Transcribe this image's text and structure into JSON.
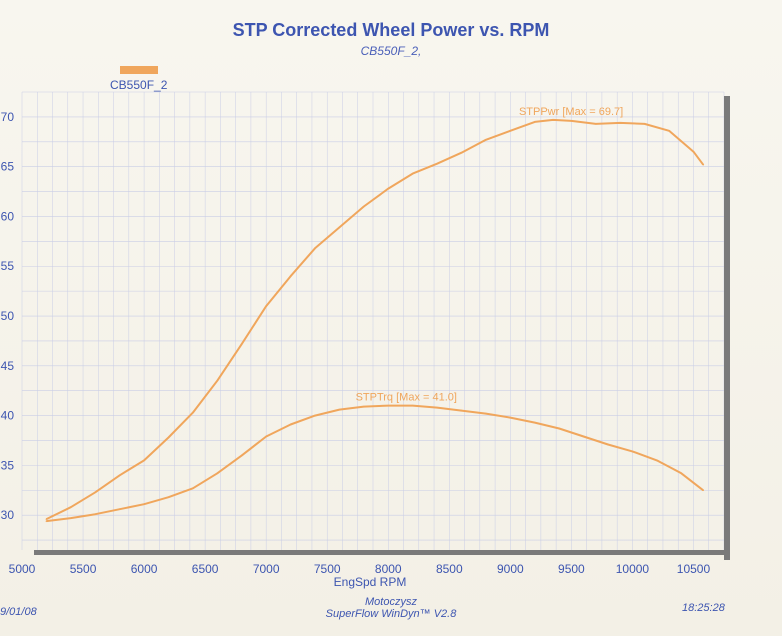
{
  "header": {
    "title": "STP Corrected Wheel Power vs. RPM",
    "subtitle": "CB550F_2,"
  },
  "legend": {
    "label": "CB550F_2",
    "color": "#f0a65c"
  },
  "footer": {
    "date": "9/01/08",
    "company": "Motoczysz",
    "software": "SuperFlow WinDyn™ V2.8",
    "time": "18:25:28"
  },
  "colors": {
    "series": "#f0a65c",
    "grid": "#c9cde6",
    "text": "#3d55b0",
    "frame": "#7a7a7a"
  },
  "chart_data": {
    "type": "line",
    "title": "STP Corrected Wheel Power vs. RPM",
    "xlabel": "EngSpd  RPM",
    "ylabel": "",
    "xlim": [
      5000,
      10750
    ],
    "ylim": [
      26.5,
      72.5
    ],
    "xticks": [
      5000,
      5500,
      6000,
      6500,
      7000,
      7500,
      8000,
      8500,
      9000,
      9500,
      10000,
      10500
    ],
    "yticks": [
      30,
      35,
      40,
      45,
      50,
      55,
      60,
      65,
      70
    ],
    "grid": true,
    "legend_position": "top-left",
    "series": [
      {
        "name": "CB550F_2",
        "label": "STPPwr [Max = 69.7]",
        "x": [
          5200,
          5400,
          5600,
          5800,
          6000,
          6200,
          6400,
          6600,
          6800,
          7000,
          7200,
          7400,
          7600,
          7800,
          8000,
          8200,
          8400,
          8600,
          8800,
          9000,
          9200,
          9350,
          9500,
          9700,
          9900,
          10100,
          10300,
          10500,
          10580
        ],
        "values": [
          29.6,
          30.8,
          32.3,
          34.0,
          35.5,
          37.8,
          40.3,
          43.5,
          47.2,
          51.0,
          54.0,
          56.8,
          58.9,
          61.0,
          62.8,
          64.3,
          65.3,
          66.4,
          67.7,
          68.6,
          69.5,
          69.7,
          69.6,
          69.3,
          69.4,
          69.3,
          68.6,
          66.5,
          65.2
        ]
      },
      {
        "name": "CB550F_2",
        "label": "STPTrq [Max = 41.0]",
        "x": [
          5200,
          5400,
          5600,
          5800,
          6000,
          6200,
          6400,
          6600,
          6800,
          7000,
          7200,
          7400,
          7600,
          7800,
          8000,
          8200,
          8400,
          8600,
          8800,
          9000,
          9200,
          9400,
          9600,
          9800,
          10000,
          10200,
          10400,
          10580
        ],
        "values": [
          29.4,
          29.7,
          30.1,
          30.6,
          31.1,
          31.8,
          32.7,
          34.2,
          36.0,
          37.9,
          39.1,
          40.0,
          40.6,
          40.9,
          41.0,
          41.0,
          40.8,
          40.5,
          40.2,
          39.8,
          39.3,
          38.7,
          37.9,
          37.1,
          36.4,
          35.5,
          34.2,
          32.5
        ]
      }
    ]
  }
}
